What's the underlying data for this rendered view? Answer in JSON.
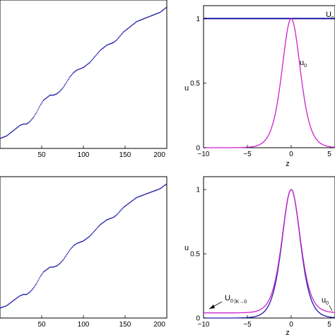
{
  "chart_data": [
    {
      "id": "top-left",
      "type": "scatter",
      "xlim": [
        0,
        200
      ],
      "x_ticks": [
        50,
        100,
        150,
        200
      ],
      "y_ticks": [],
      "xlabel": "",
      "ylabel": "",
      "grid": false,
      "series": [
        {
          "color": "#1a1aa8",
          "marker": "dot",
          "x": [
            0,
            4,
            8,
            12,
            16,
            20,
            24,
            28,
            32,
            36,
            40,
            44,
            48,
            52,
            56,
            60,
            64,
            68,
            72,
            76,
            80,
            84,
            88,
            92,
            96,
            100,
            104,
            108,
            112,
            116,
            120,
            124,
            128,
            132,
            136,
            140,
            144,
            148,
            152,
            156,
            160,
            164,
            168,
            172,
            176,
            180,
            184,
            188,
            192,
            196,
            200
          ],
          "y": [
            0.0,
            0.01,
            0.02,
            0.04,
            0.06,
            0.08,
            0.1,
            0.11,
            0.11,
            0.13,
            0.16,
            0.2,
            0.25,
            0.29,
            0.31,
            0.33,
            0.33,
            0.34,
            0.36,
            0.39,
            0.43,
            0.47,
            0.5,
            0.52,
            0.53,
            0.54,
            0.56,
            0.58,
            0.61,
            0.64,
            0.67,
            0.69,
            0.71,
            0.72,
            0.73,
            0.75,
            0.78,
            0.81,
            0.83,
            0.85,
            0.87,
            0.89,
            0.9,
            0.91,
            0.92,
            0.93,
            0.94,
            0.95,
            0.96,
            0.98,
            1.0
          ]
        }
      ]
    },
    {
      "id": "top-right",
      "type": "line",
      "xlim": [
        -10,
        5
      ],
      "ylim": [
        0,
        1.1
      ],
      "x_ticks": [
        -10,
        -5,
        0,
        5
      ],
      "y_ticks": [
        0,
        0.5,
        1
      ],
      "xlabel": "z",
      "ylabel": "u",
      "grid": false,
      "series": [
        {
          "name": "U",
          "name_sub": "c",
          "color": "#1a1aa8",
          "kind": "constant",
          "value": 1.0
        },
        {
          "name": "u",
          "name_sub": "0",
          "color": "#cc22cc",
          "kind": "sech2",
          "amplitude": 1.0,
          "width": 1.41
        }
      ],
      "annotations": [
        {
          "text": "U",
          "sub": "c",
          "at": [
            5.5,
            1.05
          ]
        },
        {
          "text": "u",
          "sub": "0",
          "at": [
            1.3,
            0.6
          ]
        }
      ]
    },
    {
      "id": "bottom-left",
      "type": "scatter",
      "xlim": [
        0,
        200
      ],
      "x_ticks": [
        50,
        100,
        150,
        200
      ],
      "y_ticks": [],
      "xlabel": "",
      "ylabel": "",
      "grid": false,
      "series": [
        {
          "color": "#1a1aa8",
          "marker": "dot",
          "x": [
            0,
            4,
            8,
            12,
            16,
            20,
            24,
            28,
            32,
            36,
            40,
            44,
            48,
            52,
            56,
            60,
            64,
            68,
            72,
            76,
            80,
            84,
            88,
            92,
            96,
            100,
            104,
            108,
            112,
            116,
            120,
            124,
            128,
            132,
            136,
            140,
            144,
            148,
            152,
            156,
            160,
            164,
            168,
            172,
            176,
            180,
            184,
            188,
            192,
            196,
            200
          ],
          "y": [
            0.0,
            0.01,
            0.02,
            0.04,
            0.06,
            0.08,
            0.1,
            0.11,
            0.11,
            0.13,
            0.16,
            0.2,
            0.25,
            0.29,
            0.31,
            0.33,
            0.33,
            0.34,
            0.36,
            0.39,
            0.43,
            0.47,
            0.5,
            0.52,
            0.53,
            0.54,
            0.56,
            0.58,
            0.61,
            0.64,
            0.67,
            0.69,
            0.71,
            0.72,
            0.73,
            0.75,
            0.78,
            0.81,
            0.83,
            0.85,
            0.87,
            0.89,
            0.9,
            0.91,
            0.92,
            0.93,
            0.94,
            0.95,
            0.96,
            0.98,
            1.0
          ]
        }
      ]
    },
    {
      "id": "bottom-right",
      "type": "line",
      "xlim": [
        -10,
        5
      ],
      "ylim": [
        0,
        1.1
      ],
      "x_ticks": [
        -10,
        -5,
        0,
        5
      ],
      "y_ticks": [
        0,
        0.5,
        1
      ],
      "xlabel": "z",
      "ylabel": "u",
      "grid": false,
      "series": [
        {
          "name": "U",
          "name_sub": "0 |",
          "name_sub2": "K→0",
          "color": "#1a1aa8",
          "kind": "sech2",
          "amplitude": 1.0,
          "width": 1.41
        },
        {
          "name": "u",
          "name_sub": "0",
          "color": "#cc22cc",
          "kind": "sech2_offset",
          "amplitude": 0.96,
          "width": 1.41,
          "offset": 0.04
        }
      ],
      "annotations": [
        {
          "text": "U",
          "sub": "0 |",
          "sub2": "K→0",
          "at": [
            -8.5,
            0.12
          ]
        },
        {
          "text": "u",
          "sub": "0",
          "at": [
            4.2,
            0.07
          ]
        }
      ]
    }
  ]
}
